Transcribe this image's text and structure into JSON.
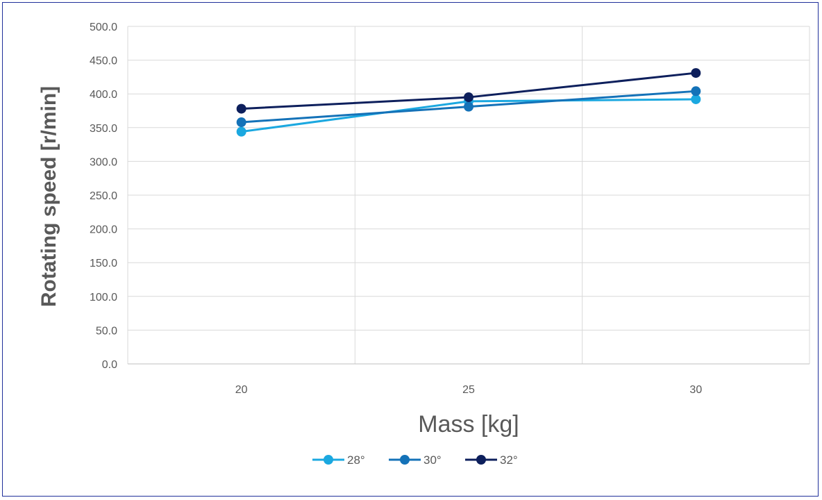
{
  "chart_data": {
    "type": "line",
    "title": "",
    "xlabel": "Mass [kg]",
    "ylabel": "Rotating speed [r/min]",
    "categories": [
      "20",
      "25",
      "30"
    ],
    "ylim": [
      0,
      500
    ],
    "yticks": [
      "0.0",
      "50.0",
      "100.0",
      "150.0",
      "200.0",
      "250.0",
      "300.0",
      "350.0",
      "400.0",
      "450.0",
      "500.0"
    ],
    "grid": true,
    "legend_position": "bottom",
    "series": [
      {
        "name": "28°",
        "values": [
          344,
          389,
          392
        ],
        "color": "#1ba8e0"
      },
      {
        "name": "30°",
        "values": [
          358,
          381,
          404
        ],
        "color": "#1472b8"
      },
      {
        "name": "32°",
        "values": [
          378,
          395,
          431
        ],
        "color": "#0d1f5c"
      }
    ]
  }
}
